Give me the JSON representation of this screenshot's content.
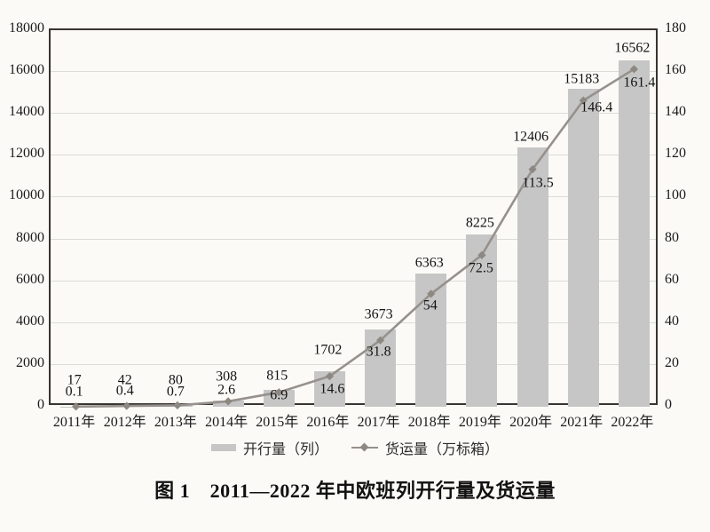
{
  "figure": {
    "caption": "图 1　2011—2022 年中欧班列开行量及货运量",
    "background": "#fbfaf7"
  },
  "legend": {
    "bar_label": "开行量（列）",
    "line_label": "货运量（万标箱）"
  },
  "chart_data": {
    "type": "bar",
    "subtype": "bar-line-combo",
    "title": "图 1　2011—2022 年中欧班列开行量及货运量",
    "categories": [
      "2011年",
      "2012年",
      "2013年",
      "2014年",
      "2015年",
      "2016年",
      "2017年",
      "2018年",
      "2019年",
      "2020年",
      "2021年",
      "2022年"
    ],
    "series": [
      {
        "name": "开行量（列）",
        "type": "bar",
        "axis": "left",
        "values": [
          17,
          42,
          80,
          308,
          815,
          1702,
          3673,
          6363,
          8225,
          12406,
          15183,
          16562
        ]
      },
      {
        "name": "货运量（万标箱）",
        "type": "line",
        "axis": "right",
        "values": [
          0.1,
          0.4,
          0.7,
          2.6,
          6.9,
          14.6,
          31.8,
          54,
          72.5,
          113.5,
          146.4,
          161.4
        ]
      }
    ],
    "left_axis": {
      "min": 0,
      "max": 18000,
      "step": 2000,
      "ticks": [
        0,
        2000,
        4000,
        6000,
        8000,
        10000,
        12000,
        14000,
        16000,
        18000
      ]
    },
    "right_axis": {
      "min": 0,
      "max": 180,
      "step": 20,
      "ticks": [
        0,
        20,
        40,
        60,
        80,
        100,
        120,
        140,
        160,
        180
      ]
    },
    "grid": true,
    "data_labels": true,
    "legend_position": "bottom",
    "colors": {
      "bar": "#c6c6c6",
      "line": "#96918c",
      "marker": "#8d8882",
      "plot_border": "#38342f",
      "gridline": "#dbdbd7",
      "text": "#1a1a1a"
    }
  }
}
